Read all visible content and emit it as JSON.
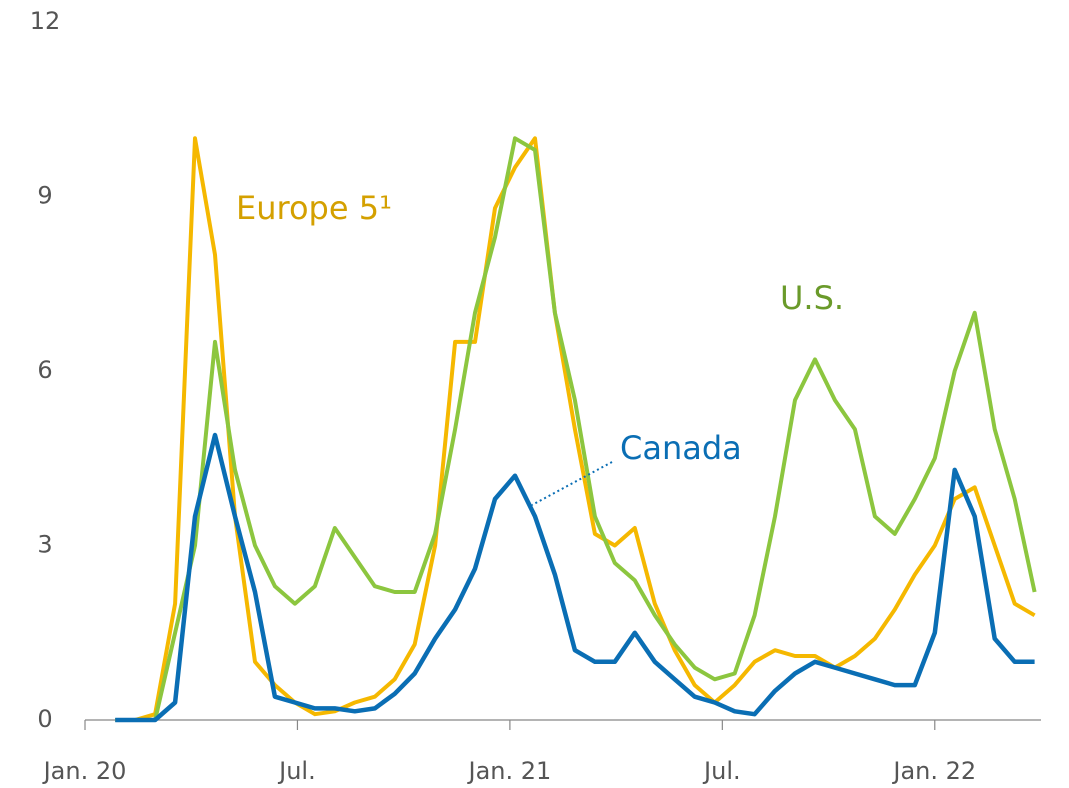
{
  "chart_data": {
    "type": "line",
    "x": [
      2020.071,
      2020.118,
      2020.165,
      2020.212,
      2020.259,
      2020.306,
      2020.353,
      2020.4,
      2020.447,
      2020.494,
      2020.541,
      2020.588,
      2020.635,
      2020.682,
      2020.729,
      2020.776,
      2020.824,
      2020.871,
      2020.918,
      2020.965,
      2021.012,
      2021.059,
      2021.106,
      2021.153,
      2021.2,
      2021.247,
      2021.294,
      2021.341,
      2021.388,
      2021.435,
      2021.482,
      2021.529,
      2021.576,
      2021.624,
      2021.671,
      2021.718,
      2021.765,
      2021.812,
      2021.859,
      2021.906,
      2021.953,
      2022.0,
      2022.047,
      2022.094,
      2022.141,
      2022.188,
      2022.235
    ],
    "series": [
      {
        "name": "Europe 5¹",
        "color": "#f5b800",
        "label_color": "#d4a000",
        "values": [
          0,
          0,
          0.1,
          2,
          10,
          8,
          3.5,
          1,
          0.6,
          0.3,
          0.1,
          0.15,
          0.3,
          0.4,
          0.7,
          1.3,
          3,
          6.5,
          6.5,
          8.8,
          9.5,
          10,
          7,
          5,
          3.2,
          3,
          3.3,
          2,
          1.2,
          0.6,
          0.3,
          0.6,
          1,
          1.2,
          1.1,
          1.1,
          0.9,
          1.1,
          1.4,
          1.9,
          2.5,
          3,
          3.8,
          4,
          3,
          2,
          1.8
        ]
      },
      {
        "name": "U.S.",
        "color": "#8cc63f",
        "label_color": "#6a9a2a",
        "values": [
          0,
          0,
          0,
          1.5,
          3,
          6.5,
          4.3,
          3,
          2.3,
          2,
          2.3,
          3.3,
          2.8,
          2.3,
          2.2,
          2.2,
          3.2,
          5,
          7,
          8.3,
          10,
          9.8,
          7,
          5.5,
          3.5,
          2.7,
          2.4,
          1.8,
          1.3,
          0.9,
          0.7,
          0.8,
          1.8,
          3.5,
          5.5,
          6.2,
          5.5,
          5,
          3.5,
          3.2,
          3.8,
          4.5,
          6,
          7,
          5,
          3.8,
          2.2
        ]
      },
      {
        "name": "Canada",
        "color": "#0a6eb4",
        "label_color": "#0a6eb4",
        "values": [
          0,
          0,
          0,
          0.3,
          3.5,
          4.9,
          3.5,
          2.2,
          0.4,
          0.3,
          0.2,
          0.2,
          0.15,
          0.2,
          0.45,
          0.8,
          1.4,
          1.9,
          2.6,
          3.8,
          4.2,
          3.5,
          2.5,
          1.2,
          1,
          1,
          1.5,
          1,
          0.7,
          0.4,
          0.3,
          0.15,
          0.1,
          0.5,
          0.8,
          1,
          0.9,
          0.8,
          0.7,
          0.6,
          0.6,
          1.5,
          4.3,
          3.5,
          1.4,
          1,
          1
        ]
      }
    ],
    "xlim": [
      2020,
      2022.25
    ],
    "xticks": [
      {
        "value": 2020,
        "label": "Jan. 20"
      },
      {
        "value": 2020.5,
        "label": "Jul."
      },
      {
        "value": 2021,
        "label": "Jan. 21"
      },
      {
        "value": 2021.5,
        "label": "Jul."
      },
      {
        "value": 2022,
        "label": "Jan. 22"
      }
    ],
    "ylim": [
      0,
      12
    ],
    "yticks": [
      0,
      3,
      6,
      9,
      12
    ],
    "grid": false
  }
}
